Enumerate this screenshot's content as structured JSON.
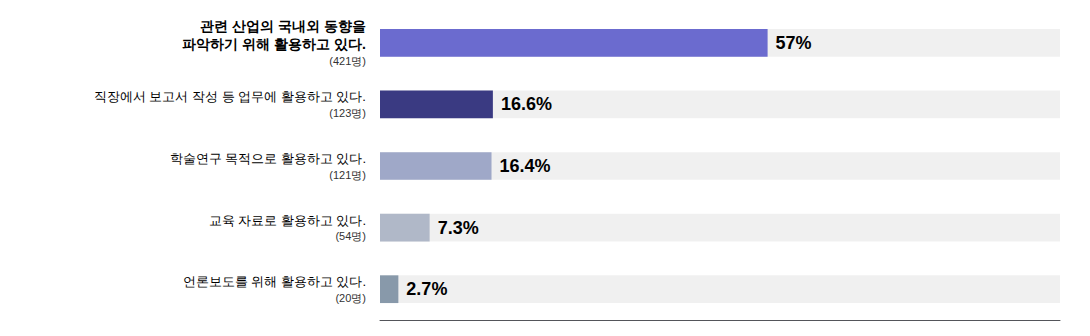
{
  "chart_data": {
    "type": "bar",
    "orientation": "horizontal",
    "categories": [
      "관련 산업의 국내외 동향을\n파악하기 위해 활용하고 있다.",
      "직장에서 보고서 작성 등 업무에 활용하고 있다.",
      "학술연구 목적으로 활용하고 있다.",
      "교육 자료로 활용하고 있다.",
      "언론보도를 위해 활용하고 있다."
    ],
    "counts": [
      "(421명)",
      "(123명)",
      "(121명)",
      "(54명)",
      "(20명)"
    ],
    "values": [
      57,
      16.6,
      16.4,
      7.3,
      2.7
    ],
    "value_labels": [
      "57%",
      "16.6%",
      "16.4%",
      "7.3%",
      "2.7%"
    ],
    "colors": [
      "#6b6bcf",
      "#3a3a82",
      "#9fa8c8",
      "#b0b8c8",
      "#8899aa"
    ],
    "xlim": [
      0,
      100
    ],
    "data_labels": true,
    "tick_labels": "y",
    "grid": false
  }
}
